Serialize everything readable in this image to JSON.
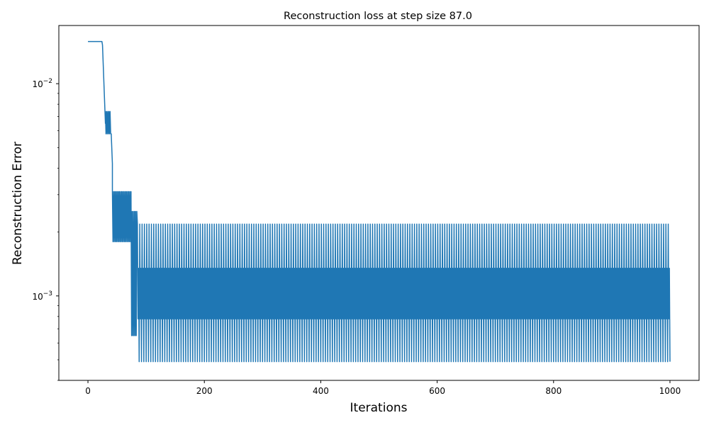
{
  "chart_data": {
    "type": "line",
    "title": "Reconstruction loss at step size 87.0",
    "xlabel": "Iterations",
    "ylabel": "Reconstruction Error",
    "xlim": [
      -50,
      1050
    ],
    "ylim": [
      0.0004,
      0.0188
    ],
    "yscale": "log",
    "grid": false,
    "legend": "none",
    "series_color": "#1f77b4",
    "x_ticks": [
      {
        "value": 0,
        "label": "0"
      },
      {
        "value": 200,
        "label": "200"
      },
      {
        "value": 400,
        "label": "400"
      },
      {
        "value": 600,
        "label": "600"
      },
      {
        "value": 800,
        "label": "800"
      },
      {
        "value": 1000,
        "label": "1000"
      }
    ],
    "y_major_ticks": [
      {
        "value": 0.01,
        "base": "10",
        "exp": "−2"
      },
      {
        "value": 0.001,
        "base": "10",
        "exp": "−3"
      }
    ],
    "y_minor_ticks": [
      0.0004,
      0.0005,
      0.0006,
      0.0007,
      0.0008,
      0.0009,
      0.002,
      0.003,
      0.004,
      0.005,
      0.006,
      0.007,
      0.008,
      0.009
    ],
    "series": [
      {
        "segments": [
          {
            "x_start": 0,
            "x_end": 25,
            "kind": "flat",
            "value": 0.0158
          },
          {
            "x_start": 25,
            "x_end": 30,
            "kind": "drop",
            "from": 0.0152,
            "to": 0.0065
          },
          {
            "x_start": 30,
            "x_end": 40,
            "kind": "oscillate",
            "high": 0.0074,
            "low": 0.0058
          },
          {
            "x_start": 40,
            "x_end": 42,
            "kind": "drop",
            "from": 0.0058,
            "to": 0.0042
          },
          {
            "x_start": 42,
            "x_end": 75,
            "kind": "oscillate",
            "high": 0.0031,
            "low": 0.0018
          },
          {
            "x_start": 75,
            "x_end": 85,
            "kind": "oscillate",
            "high": 0.0025,
            "low": 0.00065
          },
          {
            "x_start": 85,
            "x_end": 1000,
            "kind": "oscillate4",
            "levels": [
              0.00218,
              0.00135,
              0.00078,
              0.00049
            ]
          }
        ]
      }
    ]
  }
}
